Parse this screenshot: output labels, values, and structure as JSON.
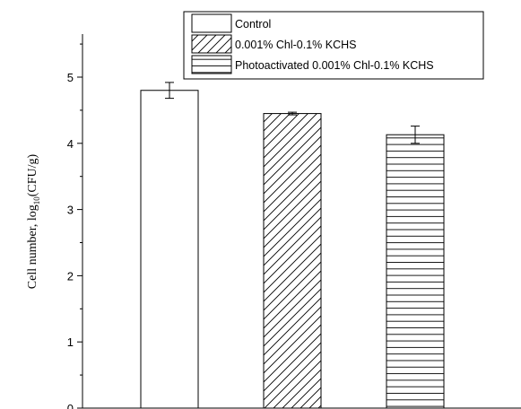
{
  "chart_data": {
    "type": "bar",
    "title": "",
    "xlabel": "",
    "ylabel": {
      "prefix": "Cell number, log",
      "subscript": "10",
      "suffix": "(CFU/g)"
    },
    "ylim": [
      0,
      5.5
    ],
    "yticks": [
      0,
      1,
      2,
      3,
      4,
      5
    ],
    "grid": false,
    "legend": "top-right",
    "series": [
      {
        "name": "Control",
        "value": 4.8,
        "error": 0.12,
        "pattern": "none"
      },
      {
        "name": "0.001% Chl-0.1% KCHS",
        "value": 4.45,
        "error": 0.02,
        "pattern": "diagonal"
      },
      {
        "name": "Photoactivated 0.001% Chl-0.1% KCHS",
        "value": 4.13,
        "error": 0.13,
        "pattern": "horizontal"
      }
    ]
  }
}
